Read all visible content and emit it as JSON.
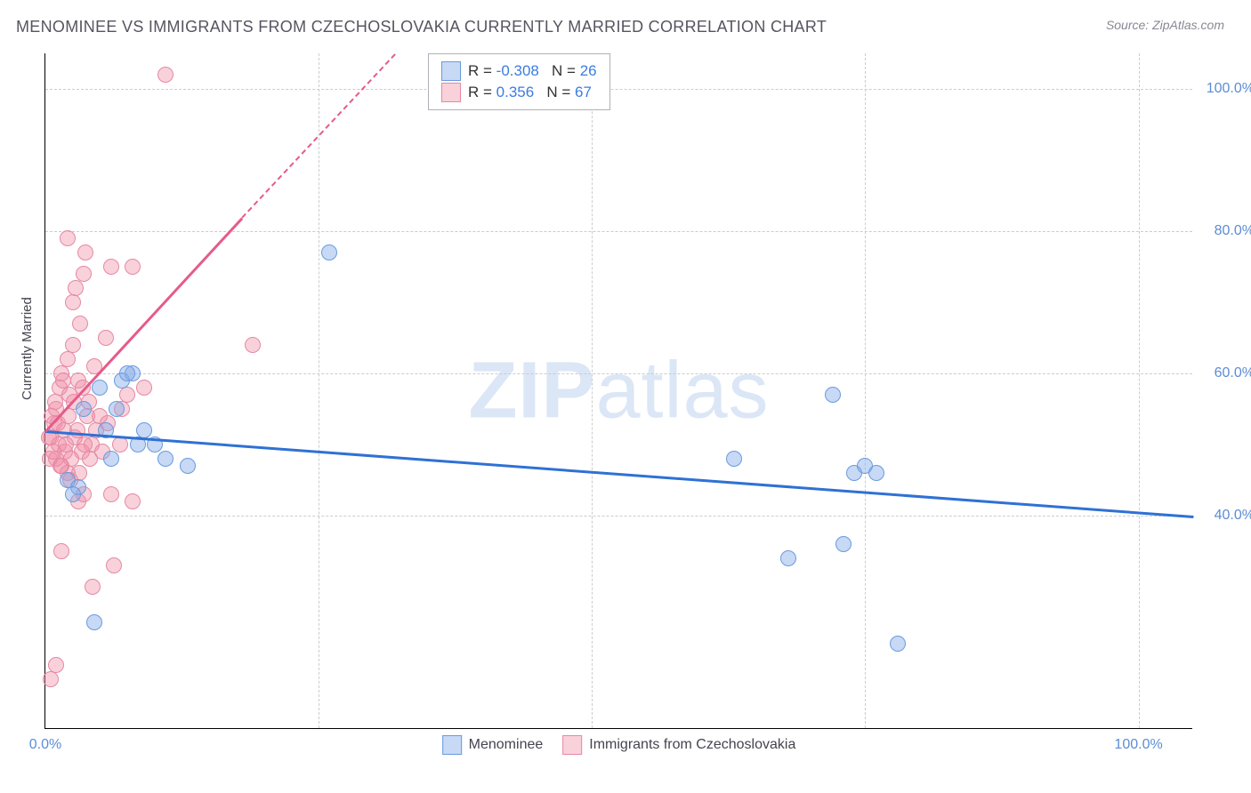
{
  "header": {
    "title": "MENOMINEE VS IMMIGRANTS FROM CZECHOSLOVAKIA CURRENTLY MARRIED CORRELATION CHART",
    "source": "Source: ZipAtlas.com"
  },
  "chart": {
    "type": "scatter",
    "ylabel": "Currently Married",
    "background_color": "#ffffff",
    "grid_color": "#cccccc",
    "xlim": [
      0,
      105
    ],
    "ylim": [
      10,
      105
    ],
    "xticks": [
      {
        "val": 0,
        "label": "0.0%"
      },
      {
        "val": 25,
        "label": ""
      },
      {
        "val": 50,
        "label": ""
      },
      {
        "val": 75,
        "label": ""
      },
      {
        "val": 100,
        "label": "100.0%"
      }
    ],
    "yticks": [
      {
        "val": 40,
        "label": "40.0%"
      },
      {
        "val": 60,
        "label": "60.0%"
      },
      {
        "val": 80,
        "label": "80.0%"
      },
      {
        "val": 100,
        "label": "100.0%"
      }
    ],
    "watermark": {
      "bold": "ZIP",
      "rest": "atlas"
    },
    "series": [
      {
        "name": "Menominee",
        "color_fill": "rgba(130,170,230,0.45)",
        "color_stroke": "#6a9ae0",
        "marker_size": 18,
        "r": "-0.308",
        "n": "26",
        "trend": {
          "x1": 0,
          "y1": 52,
          "x2": 105,
          "y2": 40,
          "color": "#2f71d4",
          "dash": false
        },
        "points": [
          [
            2,
            45
          ],
          [
            3,
            44
          ],
          [
            5,
            58
          ],
          [
            6,
            48
          ],
          [
            7,
            59
          ],
          [
            8,
            60
          ],
          [
            9,
            52
          ],
          [
            10,
            50
          ],
          [
            11,
            48
          ],
          [
            26,
            77
          ],
          [
            63,
            48
          ],
          [
            68,
            34
          ],
          [
            72,
            57
          ],
          [
            74,
            46
          ],
          [
            75,
            47
          ],
          [
            76,
            46
          ],
          [
            73,
            36
          ],
          [
            78,
            22
          ],
          [
            4.5,
            25
          ],
          [
            6.5,
            55
          ],
          [
            2.5,
            43
          ],
          [
            3.5,
            55
          ],
          [
            5.5,
            52
          ],
          [
            7.5,
            60
          ],
          [
            8.5,
            50
          ],
          [
            13,
            47
          ]
        ]
      },
      {
        "name": "Immigrants from Czechoslovakia",
        "color_fill": "rgba(240,140,165,0.40)",
        "color_stroke": "#e589a3",
        "marker_size": 18,
        "r": "0.356",
        "n": "67",
        "trend": {
          "x1": 0,
          "y1": 52,
          "x2": 18,
          "y2": 82,
          "color": "#e65a8a",
          "dash": false
        },
        "trend_ext": {
          "x1": 18,
          "y1": 82,
          "x2": 32,
          "y2": 105,
          "color": "#e65a8a",
          "dash": true
        },
        "points": [
          [
            0.5,
            51
          ],
          [
            0.8,
            53
          ],
          [
            1,
            48
          ],
          [
            1,
            55
          ],
          [
            1.2,
            50
          ],
          [
            1.3,
            58
          ],
          [
            1.5,
            60
          ],
          [
            1.5,
            47
          ],
          [
            1.7,
            52
          ],
          [
            1.8,
            49
          ],
          [
            2,
            62
          ],
          [
            2,
            46
          ],
          [
            2.2,
            57
          ],
          [
            2.3,
            45
          ],
          [
            2.5,
            64
          ],
          [
            2.5,
            70
          ],
          [
            2.7,
            51
          ],
          [
            2.8,
            72
          ],
          [
            3,
            59
          ],
          [
            3,
            42
          ],
          [
            3.2,
            67
          ],
          [
            3.3,
            49
          ],
          [
            3.5,
            74
          ],
          [
            3.5,
            43
          ],
          [
            3.7,
            77
          ],
          [
            2,
            79
          ],
          [
            4,
            56
          ],
          [
            4.2,
            50
          ],
          [
            4.5,
            61
          ],
          [
            1.5,
            35
          ],
          [
            5,
            54
          ],
          [
            5.5,
            65
          ],
          [
            6,
            43
          ],
          [
            6,
            75
          ],
          [
            7,
            55
          ],
          [
            8,
            75
          ],
          [
            8,
            42
          ],
          [
            9,
            58
          ],
          [
            11,
            102
          ],
          [
            19,
            64
          ],
          [
            0.3,
            51
          ],
          [
            0.4,
            48
          ],
          [
            0.6,
            54
          ],
          [
            0.7,
            49
          ],
          [
            0.9,
            56
          ],
          [
            1.1,
            53
          ],
          [
            1.4,
            47
          ],
          [
            1.6,
            59
          ],
          [
            1.9,
            50
          ],
          [
            2.1,
            54
          ],
          [
            2.4,
            48
          ],
          [
            2.6,
            56
          ],
          [
            2.9,
            52
          ],
          [
            3.1,
            46
          ],
          [
            3.4,
            58
          ],
          [
            3.6,
            50
          ],
          [
            3.8,
            54
          ],
          [
            4.1,
            48
          ],
          [
            4.3,
            30
          ],
          [
            4.6,
            52
          ],
          [
            5.2,
            49
          ],
          [
            5.7,
            53
          ],
          [
            6.3,
            33
          ],
          [
            6.8,
            50
          ],
          [
            0.5,
            17
          ],
          [
            1,
            19
          ],
          [
            7.5,
            57
          ]
        ]
      }
    ],
    "legend_bottom": [
      {
        "swatch_fill": "rgba(130,170,230,0.45)",
        "swatch_stroke": "#6a9ae0",
        "label": "Menominee"
      },
      {
        "swatch_fill": "rgba(240,140,165,0.40)",
        "swatch_stroke": "#e589a3",
        "label": "Immigrants from Czechoslovakia"
      }
    ]
  }
}
